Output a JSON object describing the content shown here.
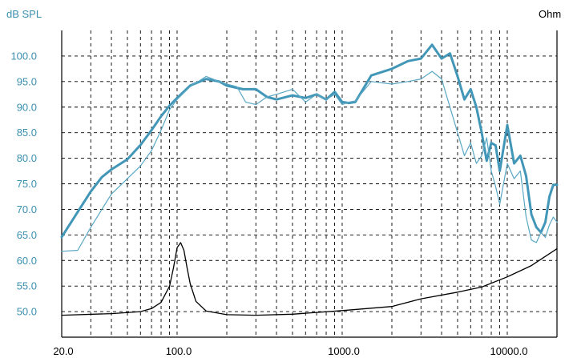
{
  "chart_data": {
    "type": "line",
    "left_axis_label": "dB SPL",
    "right_axis_label": "Ohm",
    "x_scale": "log",
    "xlim": [
      20,
      20000
    ],
    "ylim": [
      45,
      105
    ],
    "grid": true,
    "x_tick_labels": [
      {
        "value": 20,
        "label": "20.0"
      },
      {
        "value": 100,
        "label": "100.0"
      },
      {
        "value": 1000,
        "label": "1000.0"
      },
      {
        "value": 10000,
        "label": "10000.0"
      }
    ],
    "y_tick_labels": [
      {
        "value": 100,
        "label": "100.0"
      },
      {
        "value": 95,
        "label": "95.0"
      },
      {
        "value": 90,
        "label": "90.0"
      },
      {
        "value": 85,
        "label": "85.0"
      },
      {
        "value": 80,
        "label": "80.0"
      },
      {
        "value": 75,
        "label": "75.0"
      },
      {
        "value": 70,
        "label": "70.0"
      },
      {
        "value": 65,
        "label": "65.0"
      },
      {
        "value": 60,
        "label": "60.0"
      },
      {
        "value": 55,
        "label": "55.0"
      },
      {
        "value": 50,
        "label": "50.0"
      }
    ],
    "colors": {
      "spl_axis": "#3a8fb0",
      "spl_thick": "#4297b8",
      "spl_thin": "#5aa7c4",
      "impedance": "#000000",
      "grid": "#000000"
    },
    "series": [
      {
        "style": "thick",
        "x": [
          20,
          25,
          30,
          35,
          40,
          50,
          60,
          70,
          80,
          90,
          100,
          120,
          150,
          180,
          200,
          250,
          300,
          350,
          400,
          500,
          600,
          700,
          800,
          900,
          1000,
          1100,
          1200,
          1500,
          2000,
          2500,
          3000,
          3500,
          4000,
          4500,
          5000,
          5500,
          6000,
          6500,
          7000,
          7500,
          8000,
          8500,
          9000,
          10000,
          11000,
          12000,
          13000,
          14000,
          15000,
          16000,
          17000,
          18000,
          19000,
          20000
        ],
        "y": [
          64.6,
          69.5,
          73.5,
          76.3,
          77.8,
          79.8,
          82.6,
          85.5,
          88.2,
          90.3,
          91.8,
          94.2,
          95.5,
          95.0,
          94.2,
          93.5,
          93.5,
          92.0,
          91.5,
          92.3,
          91.8,
          92.5,
          91.5,
          93.0,
          91.0,
          90.8,
          91.0,
          96.2,
          97.5,
          99.0,
          99.5,
          102.2,
          99.5,
          100.5,
          96.0,
          91.5,
          93.5,
          90.0,
          85.0,
          79.5,
          83.0,
          82.5,
          77.5,
          86.5,
          79.0,
          80.5,
          76.5,
          69.0,
          66.5,
          65.5,
          67.5,
          72.5,
          74.8,
          74.8
        ]
      },
      {
        "style": "thin",
        "x": [
          20,
          25,
          30,
          35,
          40,
          50,
          60,
          70,
          80,
          90,
          100,
          120,
          150,
          180,
          200,
          230,
          260,
          300,
          350,
          400,
          500,
          600,
          700,
          800,
          900,
          1000,
          1100,
          1200,
          1500,
          2000,
          2500,
          3000,
          3500,
          4000,
          4500,
          5000,
          5500,
          6000,
          6500,
          7000,
          7500,
          8000,
          8500,
          9000,
          10000,
          11000,
          12000,
          13000,
          14000,
          15000,
          16000,
          17000,
          18000,
          19000,
          20000
        ],
        "y": [
          61.8,
          62.0,
          66.5,
          70.0,
          73.0,
          76.0,
          78.5,
          81.5,
          85.5,
          89.5,
          91.5,
          94.0,
          96.0,
          95.0,
          94.5,
          94.0,
          91.0,
          90.5,
          92.0,
          92.5,
          93.5,
          91.0,
          92.5,
          91.5,
          92.5,
          90.5,
          91.0,
          91.2,
          95.0,
          94.5,
          95.0,
          95.5,
          97.0,
          95.5,
          90.0,
          85.0,
          80.5,
          83.0,
          79.0,
          80.5,
          84.0,
          77.5,
          74.5,
          71.0,
          79.0,
          76.0,
          77.5,
          68.5,
          64.0,
          63.5,
          65.5,
          64.5,
          67.0,
          68.5,
          67.5
        ]
      },
      {
        "style": "impedance",
        "x": [
          20,
          40,
          60,
          70,
          80,
          90,
          95,
          100,
          105,
          110,
          115,
          120,
          130,
          150,
          200,
          300,
          500,
          1000,
          2000,
          3000,
          5000,
          7000,
          10000,
          14000,
          20000
        ],
        "y": [
          49.3,
          49.6,
          50.0,
          50.6,
          51.8,
          55.0,
          58.5,
          62.5,
          63.5,
          62.0,
          58.5,
          55.5,
          52.0,
          50.1,
          49.4,
          49.3,
          49.5,
          50.2,
          51.0,
          52.5,
          53.8,
          54.8,
          56.8,
          59.0,
          62.3
        ]
      }
    ]
  }
}
